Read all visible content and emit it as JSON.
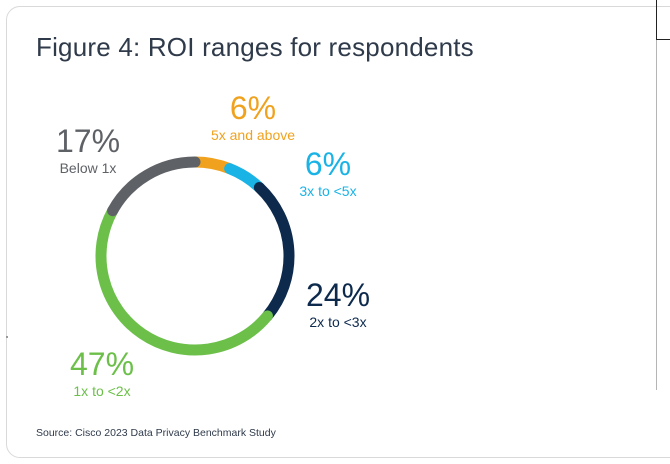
{
  "chart_data": {
    "type": "pie",
    "variant": "donut",
    "title": "Figure 4: ROI ranges for respondents",
    "source": "Source: Cisco 2023 Data Privacy Benchmark Study",
    "slices": [
      {
        "pct_label": "6%",
        "label": "5x and above",
        "value": 6,
        "color": "#f0a21e"
      },
      {
        "pct_label": "6%",
        "label": "3x to <5x",
        "value": 6,
        "color": "#1ab3e6"
      },
      {
        "pct_label": "24%",
        "label": "2x to <3x",
        "value": 24,
        "color": "#0d2a4d"
      },
      {
        "pct_label": "47%",
        "label": "1x to <2x",
        "value": 47,
        "color": "#6cc04a"
      },
      {
        "pct_label": "17%",
        "label": "Below 1x",
        "value": 17,
        "color": "#5e6166"
      }
    ]
  }
}
